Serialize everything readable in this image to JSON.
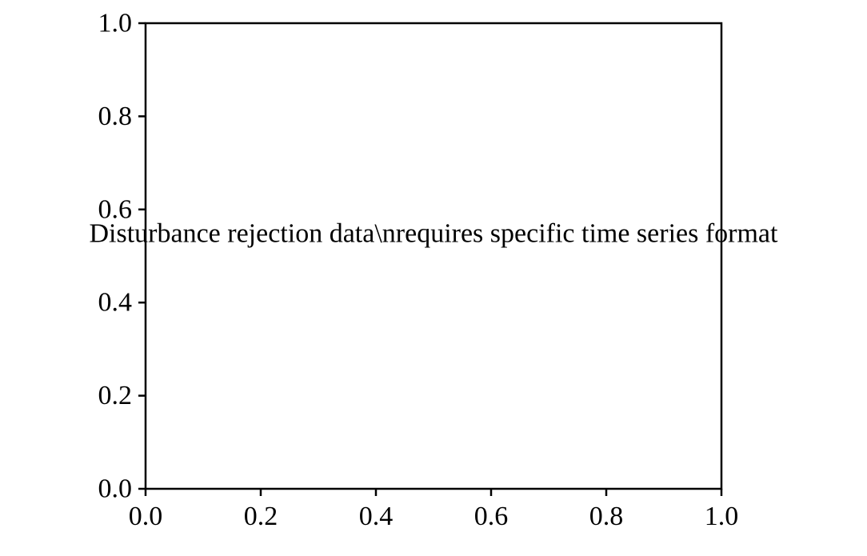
{
  "chart_data": {
    "type": "scatter",
    "title": "",
    "xlabel": "",
    "ylabel": "",
    "xlim": [
      0.0,
      1.0
    ],
    "ylim": [
      0.0,
      1.0
    ],
    "x_ticks": [
      0.0,
      0.2,
      0.4,
      0.6,
      0.8,
      1.0
    ],
    "x_tick_labels": [
      "0.0",
      "0.2",
      "0.4",
      "0.6",
      "0.8",
      "1.0"
    ],
    "y_ticks": [
      0.0,
      0.2,
      0.4,
      0.6,
      0.8,
      1.0
    ],
    "y_tick_labels": [
      "0.0",
      "0.2",
      "0.4",
      "0.6",
      "0.8",
      "1.0"
    ],
    "grid": false,
    "series": [],
    "annotation": {
      "text": "Disturbance rejection data\\nrequires specific time series format",
      "x": 0.5,
      "y": 0.5
    }
  }
}
